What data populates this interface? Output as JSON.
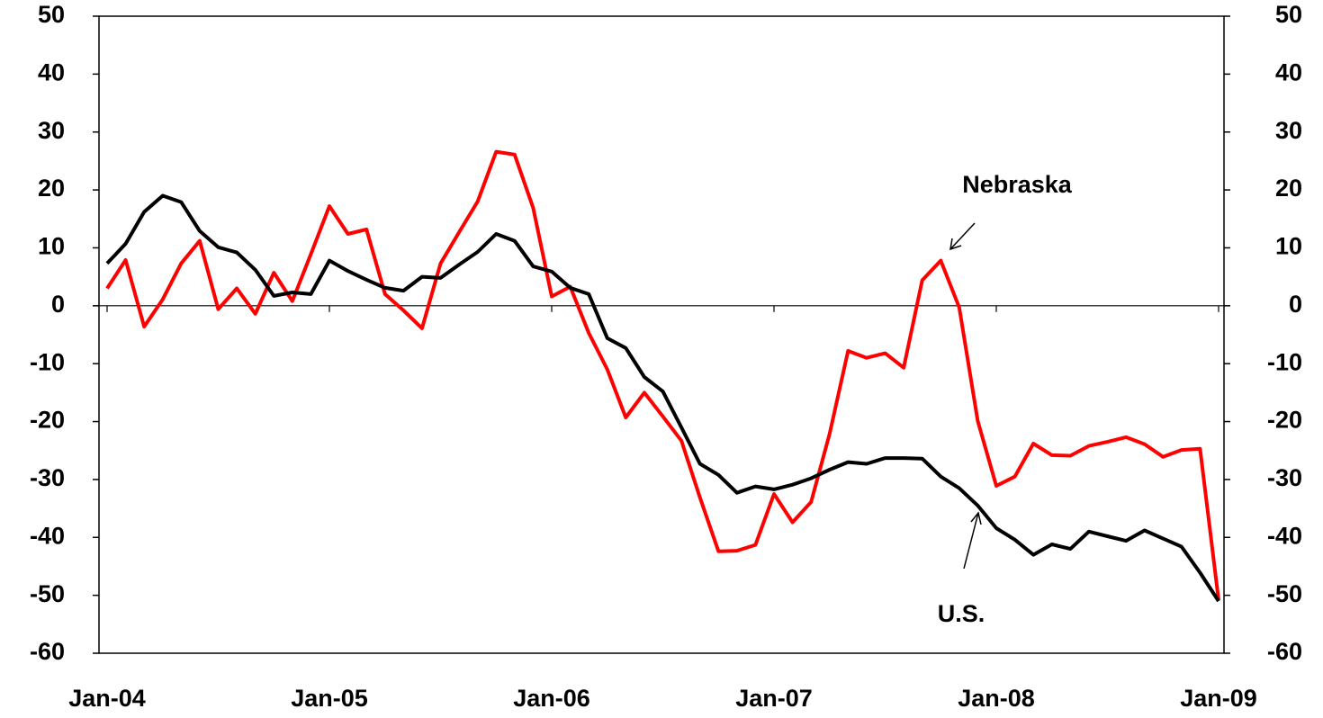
{
  "chart_data": {
    "type": "line",
    "categories": [
      "Jan-04",
      null,
      null,
      null,
      null,
      null,
      null,
      null,
      null,
      null,
      null,
      null,
      "Jan-05",
      null,
      null,
      null,
      null,
      null,
      null,
      null,
      null,
      null,
      null,
      null,
      "Jan-06",
      null,
      null,
      null,
      null,
      null,
      null,
      null,
      null,
      null,
      null,
      null,
      "Jan-07",
      null,
      null,
      null,
      null,
      null,
      null,
      null,
      null,
      null,
      null,
      null,
      "Jan-08",
      null,
      null,
      null,
      null,
      null,
      null,
      null,
      null,
      null,
      null,
      null,
      "Jan-09"
    ],
    "series": [
      {
        "name": "U.S.",
        "color": "#000000",
        "values": [
          7.3,
          10.7,
          16.2,
          19,
          17.9,
          12.9,
          10.1,
          9.2,
          6.2,
          1.7,
          2.3,
          2,
          7.8,
          6,
          4.5,
          3.1,
          2.6,
          5,
          4.8,
          7.1,
          9.3,
          12.4,
          11.2,
          6.8,
          5.9,
          3.1,
          2,
          -5.6,
          -7.3,
          -12.3,
          -14.8,
          -21,
          -27.3,
          -29.2,
          -32.3,
          -31.2,
          -31.7,
          -30.9,
          -29.8,
          -28.3,
          -27,
          -27.3,
          -26.3,
          -26.3,
          -26.4,
          -29.5,
          -31.5,
          -34.5,
          -38.4,
          -40.4,
          -43,
          -41.2,
          -42,
          -39,
          -39.8,
          -40.6,
          -38.8,
          -40.2,
          -41.6,
          -46.1,
          -51
        ]
      },
      {
        "name": "Nebraska",
        "color": "#ff0000",
        "values": [
          3,
          7.9,
          -3.6,
          1.1,
          7.3,
          11.2,
          -0.6,
          3,
          -1.4,
          5.7,
          0.8,
          8.9,
          17.2,
          12.4,
          13.2,
          2,
          -0.8,
          -3.9,
          7.3,
          12.7,
          18,
          26.6,
          26.1,
          16.9,
          1.6,
          3.3,
          -4.7,
          -11,
          -19.3,
          -15,
          -19.1,
          -23.3,
          -33.1,
          -42.4,
          -42.3,
          -41.3,
          -32.5,
          -37.4,
          -33.9,
          -22.1,
          -7.8,
          -9,
          -8.2,
          -10.7,
          4.4,
          7.8,
          -0.3,
          -19.9,
          -31.1,
          -29.5,
          -23.8,
          -25.8,
          -25.9,
          -24.2,
          -23.5,
          -22.7,
          -23.9,
          -26.1,
          -24.9,
          -24.7,
          -50.8
        ]
      }
    ],
    "annotations": [
      "Nebraska",
      "U.S."
    ],
    "ylim": [
      -60,
      50
    ],
    "yticks": [
      -60,
      -50,
      -40,
      -30,
      -20,
      -10,
      0,
      10,
      20,
      30,
      40,
      50
    ],
    "y2lim": [
      -60,
      50
    ],
    "y2ticks": [
      -60,
      -50,
      -40,
      -30,
      -20,
      -10,
      0,
      10,
      20,
      30,
      40,
      50
    ],
    "grid": false
  }
}
